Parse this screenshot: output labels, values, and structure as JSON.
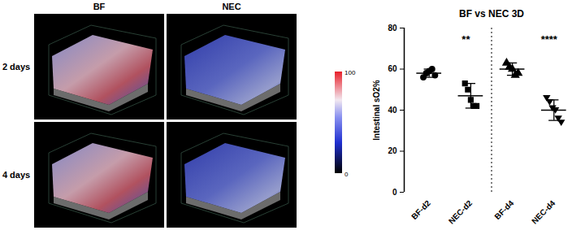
{
  "figure": {
    "columns": [
      "BF",
      "NEC"
    ],
    "rows": [
      "2 days",
      "4 days"
    ],
    "colorbar": {
      "range": [
        0,
        100
      ],
      "ticks": [
        0,
        100
      ]
    }
  },
  "chart_data": {
    "type": "scatter",
    "title": "BF vs NEC 3D",
    "y_label": "Intestinal sO2%",
    "categories": [
      "BF-d2",
      "NEC-d2",
      "BF-d4",
      "NEC-d4"
    ],
    "points": [
      [
        56,
        58,
        59,
        60,
        57
      ],
      [
        53,
        50,
        45,
        42,
        42
      ],
      [
        63,
        61,
        60,
        57,
        58
      ],
      [
        46,
        44,
        41,
        40,
        36,
        34
      ]
    ],
    "mean": [
      58,
      47,
      60,
      40
    ],
    "sd": [
      2,
      6,
      3,
      5
    ],
    "markers": [
      "circle",
      "square",
      "triangle-up",
      "triangle-down"
    ],
    "color": "#000000",
    "ylim": [
      0,
      80
    ],
    "yticks": [
      0,
      20,
      40,
      60,
      80
    ],
    "annotations": [
      {
        "text": "**",
        "category": "NEC-d2"
      },
      {
        "text": "****",
        "category": "NEC-d4"
      }
    ]
  }
}
